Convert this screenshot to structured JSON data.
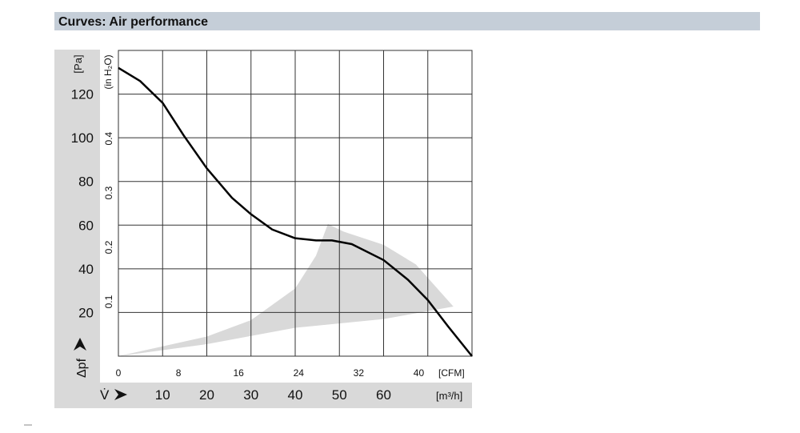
{
  "header": {
    "title": "Curves: Air performance"
  },
  "chart_data": {
    "type": "line",
    "ylabel": "[Pa]",
    "ysymbol": "Δpf",
    "xlabel": "[m³/h]",
    "xsymbol": "V̇",
    "x2label": "[CFM]",
    "y2label": "(in H₂O)",
    "xlim": [
      0,
      80
    ],
    "xticks": [
      10,
      20,
      30,
      40,
      50,
      60
    ],
    "ylim": [
      0,
      140
    ],
    "yticks": [
      20,
      40,
      60,
      80,
      100,
      120
    ],
    "x2lim": [
      0,
      47.09
    ],
    "x2ticks": [
      0,
      8,
      16,
      24,
      32,
      40
    ],
    "y2lim": [
      0,
      0.562
    ],
    "y2ticks": [
      0.1,
      0.2,
      0.3,
      0.4
    ],
    "grid": true,
    "series": [
      {
        "color": "#000000",
        "x": [
          0,
          4.9,
          10,
          14.8,
          20,
          25.7,
          30,
          34.8,
          40,
          44.7,
          48.3,
          52.8,
          60,
          65.5,
          70,
          74.6,
          80
        ],
        "values": [
          132,
          126,
          116,
          101,
          86,
          72.5,
          65,
          58,
          54,
          53,
          53,
          51.3,
          44,
          35,
          25.7,
          13.6,
          0
        ]
      }
    ],
    "operating_range": {
      "color": "#d9d9d9",
      "x": [
        0,
        20,
        30,
        40,
        44.7,
        47.4,
        51,
        60,
        67.3,
        75.8,
        60,
        40,
        20,
        0
      ],
      "values": [
        0,
        9,
        16.5,
        31,
        46,
        60.5,
        57,
        51,
        42,
        22.7,
        17,
        13,
        5.5,
        0
      ]
    }
  }
}
